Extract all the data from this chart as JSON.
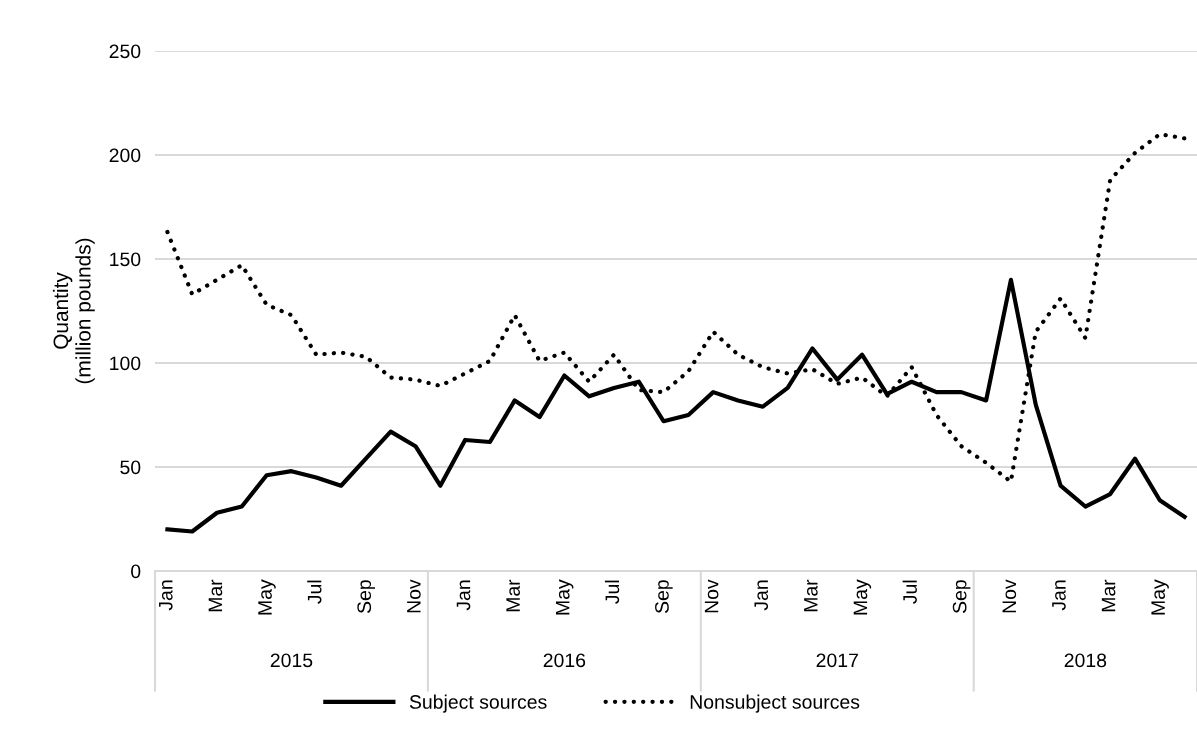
{
  "chart_data": {
    "type": "line",
    "ylabel": "Quantity\n(million pounds)",
    "categories": [
      "Jan",
      null,
      "Mar",
      null,
      "May",
      null,
      "Jul",
      null,
      "Sep",
      null,
      "Nov",
      null,
      "Jan",
      null,
      "Mar",
      null,
      "May",
      null,
      "Jul",
      null,
      "Sep",
      null,
      "Nov",
      null,
      "Jan",
      null,
      "Mar",
      null,
      "May",
      null,
      "Jul",
      null,
      "Sep",
      null,
      "Nov",
      null,
      "Jan",
      null,
      "Mar",
      null,
      "May",
      null
    ],
    "annotations": [
      "2015",
      "2016",
      "2017",
      "2018"
    ],
    "series": [
      {
        "name": "Subject sources",
        "color": "#000000",
        "line_style": "solid",
        "values": [
          20,
          19,
          28,
          31,
          46,
          48,
          45,
          41,
          54,
          67,
          60,
          41,
          63,
          62,
          82,
          74,
          94,
          84,
          88,
          91,
          72,
          75,
          86,
          82,
          79,
          88,
          107,
          92,
          104,
          85,
          91,
          86,
          86,
          82,
          140,
          80,
          41,
          31,
          37,
          54,
          34,
          26
        ]
      },
      {
        "name": "Nonsubject sources",
        "color": "#000000",
        "line_style": "dotted",
        "values": [
          163,
          133,
          140,
          147,
          128,
          123,
          104,
          105,
          103,
          93,
          92,
          89,
          95,
          101,
          123,
          101,
          105,
          91,
          104,
          87,
          86,
          96,
          115,
          104,
          98,
          95,
          97,
          90,
          93,
          84,
          98,
          75,
          60,
          52,
          43,
          115,
          131,
          112,
          188,
          201,
          210,
          208
        ]
      }
    ],
    "ylim": [
      0,
      250
    ],
    "yticks": [
      0,
      50,
      100,
      150,
      200,
      250
    ],
    "grid": "y",
    "legend": "bottom",
    "marker": "none"
  }
}
